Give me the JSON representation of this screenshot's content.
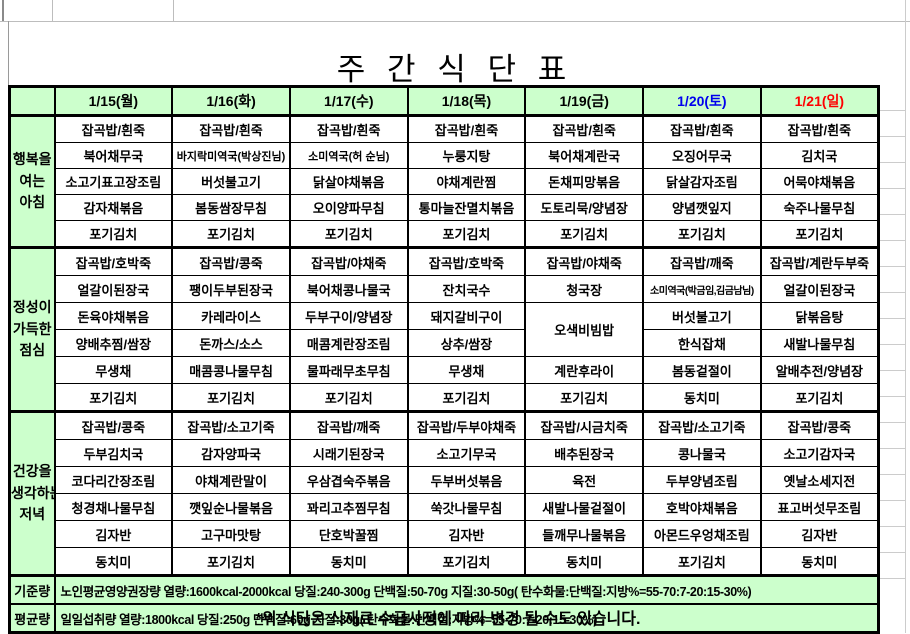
{
  "title": "주 간 식 단 표",
  "note": "*위 식단은 식재료 수급사정에 따라 변경 될 수도 있습니다.",
  "colors": {
    "cell_green": "#ccffcc",
    "saturday_date": "#0000ee",
    "sunday_date": "#ff0000",
    "weekday_date": "#000000"
  },
  "sections": {
    "breakfast": {
      "label_lines": [
        "행복을",
        "여는",
        "아침"
      ],
      "rows": 5
    },
    "lunch": {
      "label_lines": [
        "정성이",
        "가득한",
        "점심"
      ],
      "rows": 6
    },
    "dinner": {
      "label_lines": [
        "건강을",
        "생각하는",
        "저녁"
      ],
      "rows": 6
    }
  },
  "days": [
    {
      "date": "1/15(월)",
      "date_color": "#000000",
      "breakfast": [
        "잡곡밥/흰죽",
        "북어채무국",
        "소고기표고장조림",
        "감자채볶음",
        "포기김치"
      ],
      "lunch": [
        "잡곡밥/호박죽",
        "얼갈이된장국",
        "돈육야채볶음",
        "양배추찜/쌈장",
        "무생채",
        "포기김치"
      ],
      "dinner": [
        "잡곡밥/콩죽",
        "두부김치국",
        "코다리간장조림",
        "청경채나물무침",
        "김자반",
        "동치미"
      ]
    },
    {
      "date": "1/16(화)",
      "date_color": "#000000",
      "breakfast": [
        "잡곡밥/흰죽",
        "바지락미역국(박상진님)",
        "버섯불고기",
        "봄동쌈장무침",
        "포기김치"
      ],
      "lunch": [
        "잡곡밥/콩죽",
        "팽이두부된장국",
        "카레라이스",
        "돈까스/소스",
        "매콤콩나물무침",
        "포기김치"
      ],
      "dinner": [
        "잡곡밥/소고기죽",
        "감자양파국",
        "야채계란말이",
        "깻잎순나물볶음",
        "고구마맛탕",
        "포기김치"
      ]
    },
    {
      "date": "1/17(수)",
      "date_color": "#000000",
      "breakfast": [
        "잡곡밥/흰죽",
        "소미역국(허 순님)",
        "닭살야채볶음",
        "오이양파무침",
        "포기김치"
      ],
      "lunch": [
        "잡곡밥/야채죽",
        "북어채콩나물국",
        "두부구이/양념장",
        "매콤계란장조림",
        "물파래무초무침",
        "포기김치"
      ],
      "dinner": [
        "잡곡밥/깨죽",
        "시래기된장국",
        "우삼겹숙주볶음",
        "꽈리고추찜무침",
        "단호박꿀찜",
        "동치미"
      ]
    },
    {
      "date": "1/18(목)",
      "date_color": "#000000",
      "breakfast": [
        "잡곡밥/흰죽",
        "누룽지탕",
        "야채계란찜",
        "통마늘잔멸치볶음",
        "포기김치"
      ],
      "lunch": [
        "잡곡밥/호박죽",
        "잔치국수",
        "돼지갈비구이",
        "상추/쌈장",
        "무생채",
        "포기김치"
      ],
      "dinner": [
        "잡곡밥/두부야채죽",
        "소고기무국",
        "두부버섯볶음",
        "쑥갓나물무침",
        "김자반",
        "포기김치"
      ]
    },
    {
      "date": "1/19(금)",
      "date_color": "#000000",
      "breakfast": [
        "잡곡밥/흰죽",
        "북어채계란국",
        "돈채피망볶음",
        "도토리묵/양념장",
        "포기김치"
      ],
      "lunch": [
        "잡곡밥/야채죽",
        "청국장",
        {
          "text": "오색비빔밥",
          "rowspan": 2
        },
        "계란후라이",
        "포기김치"
      ],
      "dinner": [
        "잡곡밥/시금치죽",
        "배추된장국",
        "육전",
        "새발나물겉절이",
        "들깨무나물볶음",
        "동치미"
      ]
    },
    {
      "date": "1/20(토)",
      "date_color": "#0000ee",
      "breakfast": [
        "잡곡밥/흰죽",
        "오징어무국",
        "닭살감자조림",
        "양념깻잎지",
        "포기김치"
      ],
      "lunch": [
        "잡곡밥/깨죽",
        "소미역국(박금임,김금남님)",
        "버섯불고기",
        "한식잡채",
        "봄동겉절이",
        "동치미"
      ],
      "dinner": [
        "잡곡밥/소고기죽",
        "콩나물국",
        "두부양념조림",
        "호박야채볶음",
        "아몬드우엉채조림",
        "포기김치"
      ]
    },
    {
      "date": "1/21(일)",
      "date_color": "#ff0000",
      "breakfast": [
        "잡곡밥/흰죽",
        "김치국",
        "어묵야채볶음",
        "숙주나물무침",
        "포기김치"
      ],
      "lunch": [
        "잡곡밥/계란두부죽",
        "얼갈이된장국",
        "닭볶음탕",
        "새발나물무침",
        "알배추전/양념장",
        "포기김치"
      ],
      "dinner": [
        "잡곡밥/콩죽",
        "소고기감자국",
        "옛날소세지전",
        "표고버섯무조림",
        "김자반",
        "동치미"
      ]
    }
  ],
  "footer": [
    {
      "label": "기준량",
      "text": "노인평균영양권장량 열량:1600kcal-2000kcal 당질:240-300g 단백질:50-70g 지질:30-50g( 탄수화물:단백질:지방%=55-70:7-20:15-30%)"
    },
    {
      "label": "평균량",
      "text": "일일섭취량 열량:1800kcal 당질:250g 단백질:60g 지질:30g( 탄수화물:단백질:지방%=55-70:7-20:15-30%)"
    }
  ]
}
